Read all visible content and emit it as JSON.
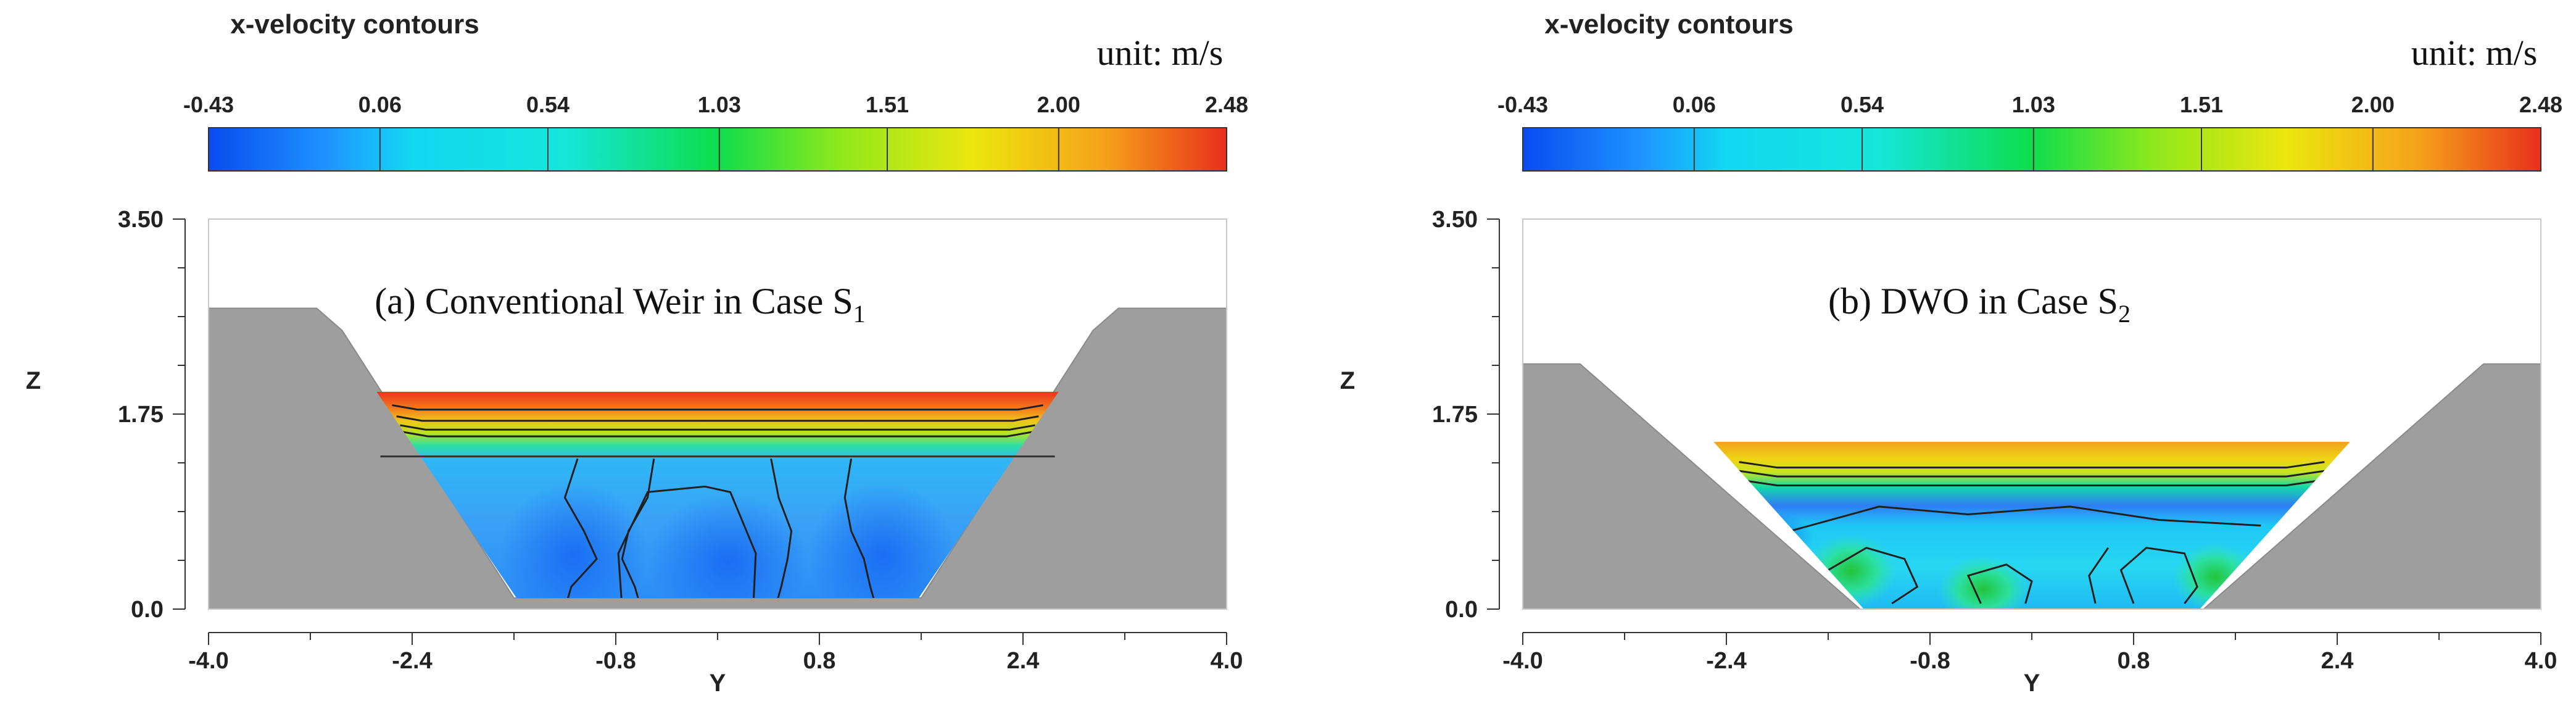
{
  "chart_data": [
    {
      "type": "heatmap",
      "title": "x-velocity contours",
      "unit_label": "unit: m/s",
      "annotation": "(a) Conventional Weir in Case S",
      "annotation_sub": "1",
      "xlabel": "Y",
      "ylabel": "Z",
      "xlim": [
        -4.0,
        4.0
      ],
      "ylim": [
        0.0,
        3.5
      ],
      "x_ticks": [
        "-4.0",
        "-2.4",
        "-0.8",
        "0.8",
        "2.4",
        "4.0"
      ],
      "y_ticks": [
        "0.0",
        "1.75",
        "3.50"
      ],
      "colorbar": {
        "range": [
          -0.43,
          2.48
        ],
        "ticks": [
          "-0.43",
          "0.06",
          "0.54",
          "1.03",
          "1.51",
          "2.00",
          "2.48"
        ]
      },
      "channel_profile": {
        "bank_top_z": 2.7,
        "bed_z": 0.1,
        "water_surface_z": 1.95
      }
    },
    {
      "type": "heatmap",
      "title": "x-velocity contours",
      "unit_label": "unit: m/s",
      "annotation": "(b) DWO in Case S",
      "annotation_sub": "2",
      "xlabel": "Y",
      "ylabel": "Z",
      "xlim": [
        -4.0,
        4.0
      ],
      "ylim": [
        0.0,
        3.5
      ],
      "x_ticks": [
        "-4.0",
        "-2.4",
        "-0.8",
        "0.8",
        "2.4",
        "4.0"
      ],
      "y_ticks": [
        "0.0",
        "1.75",
        "3.50"
      ],
      "colorbar": {
        "range": [
          -0.43,
          2.48
        ],
        "ticks": [
          "-0.43",
          "0.06",
          "0.54",
          "1.03",
          "1.51",
          "2.00",
          "2.48"
        ]
      },
      "channel_profile": {
        "bank_top_z": 2.2,
        "bed_z": 0.0,
        "water_surface_z": 1.5
      }
    }
  ],
  "colors": {
    "bank": "#9e9e9e",
    "bank_stroke": "#8a8a8a",
    "contour_line": "#1f1f1f"
  }
}
